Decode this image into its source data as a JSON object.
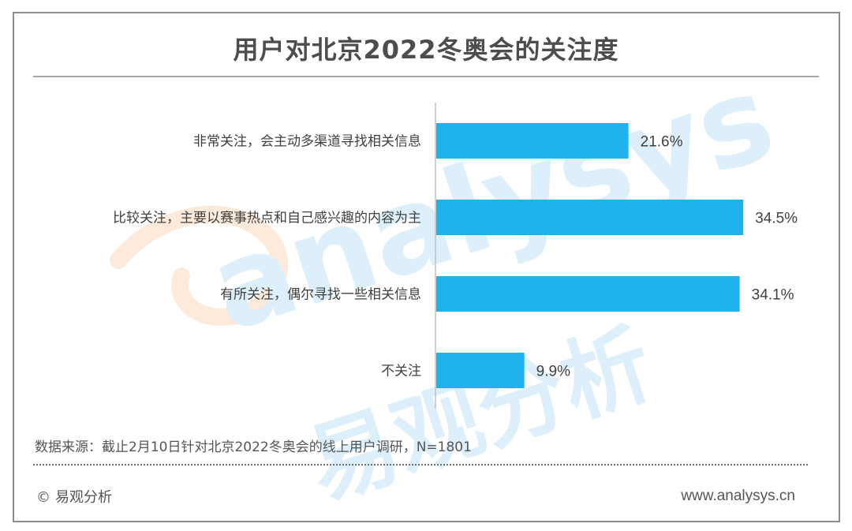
{
  "title": "用户对北京2022冬奥会的关注度",
  "watermark": {
    "logo_text": "analysys",
    "cn_text": "易观分析"
  },
  "chart_data": {
    "type": "bar",
    "orientation": "horizontal",
    "categories": [
      "非常关注，会主动多渠道寻找相关信息",
      "比较关注，主要以赛事热点和自己感兴趣的内容为主",
      "有所关注，偶尔寻找一些相关信息",
      "不关注"
    ],
    "values": [
      21.6,
      34.5,
      34.1,
      9.9
    ],
    "value_labels": [
      "21.6%",
      "34.5%",
      "34.1%",
      "9.9%"
    ],
    "unit": "%",
    "xlim": [
      0,
      35
    ],
    "bar_color": "#20b2ec",
    "grid": false,
    "legend": "none"
  },
  "source": "数据来源：截止2月10日针对北京2022冬奥会的线上用户调研，N=1801",
  "footer": {
    "copyright_symbol": "©",
    "copyright_text": "易观分析",
    "website": "www.analysys.cn"
  },
  "colors": {
    "bar": "#20b2ec",
    "title": "#4d4d4d",
    "text": "#404040",
    "watermark_orange": "#f5a05a",
    "watermark_blue": "#9fd6f5"
  }
}
